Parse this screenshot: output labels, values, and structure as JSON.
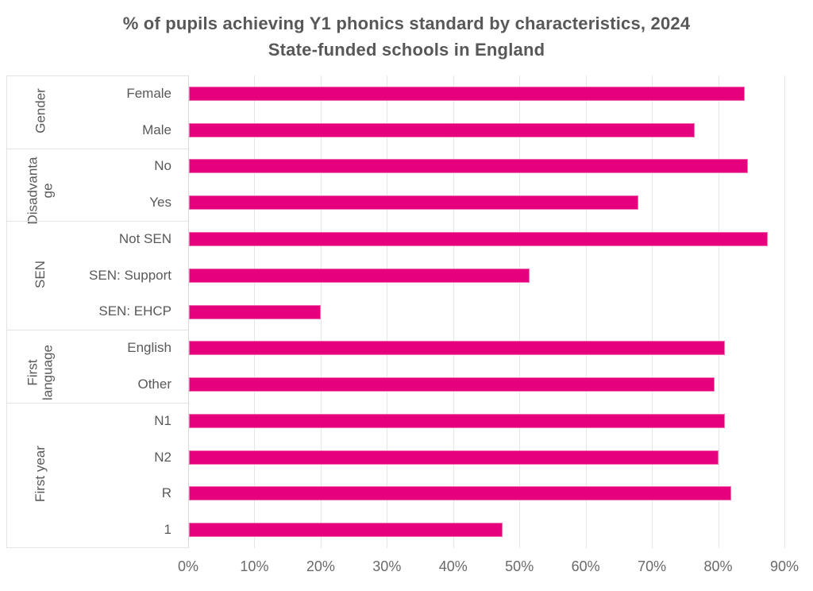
{
  "title": {
    "line1": "% of pupils achieving Y1 phonics standard by characteristics, 2024",
    "line2": "State-funded schools in England"
  },
  "chart_data": {
    "type": "bar",
    "orientation": "horizontal",
    "value_unit": "%",
    "title": "% of pupils achieving Y1 phonics standard by characteristics, 2024",
    "subtitle": "State-funded schools in England",
    "xlabel": "",
    "ylabel": "",
    "xlim": [
      0,
      93
    ],
    "grid": true,
    "legend": "none",
    "x_ticks": [
      {
        "value": 0,
        "label": "0%"
      },
      {
        "value": 10,
        "label": "10%"
      },
      {
        "value": 20,
        "label": "20%"
      },
      {
        "value": 30,
        "label": "30%"
      },
      {
        "value": 40,
        "label": "40%"
      },
      {
        "value": 50,
        "label": "50%"
      },
      {
        "value": 60,
        "label": "60%"
      },
      {
        "value": 70,
        "label": "70%"
      },
      {
        "value": 80,
        "label": "80%"
      },
      {
        "value": 90,
        "label": "90%"
      }
    ],
    "groups": [
      {
        "label": "Gender",
        "items": [
          {
            "label": "Female",
            "value": 84
          },
          {
            "label": "Male",
            "value": 76.5
          }
        ]
      },
      {
        "label": "Disadvantage",
        "items": [
          {
            "label": "No",
            "value": 84.5
          },
          {
            "label": "Yes",
            "value": 68
          }
        ]
      },
      {
        "label": "SEN",
        "items": [
          {
            "label": "Not SEN",
            "value": 87.5
          },
          {
            "label": "SEN: Support",
            "value": 51.5
          },
          {
            "label": "SEN: EHCP",
            "value": 20
          }
        ]
      },
      {
        "label": "First language",
        "items": [
          {
            "label": "English",
            "value": 81
          },
          {
            "label": "Other",
            "value": 79.5
          }
        ]
      },
      {
        "label": "First year",
        "items": [
          {
            "label": "N1",
            "value": 81
          },
          {
            "label": "N2",
            "value": 80
          },
          {
            "label": "R",
            "value": 82
          },
          {
            "label": "1",
            "value": 47.5
          }
        ]
      }
    ]
  },
  "colors": {
    "bar": "#E6007E",
    "bar_edge": "#F16EB2",
    "title_text": "#58585A",
    "label_text": "#595959",
    "tick_text": "#6A6A6A",
    "gridline": "#E6E6E6",
    "box_border": "#E3E3E3"
  }
}
